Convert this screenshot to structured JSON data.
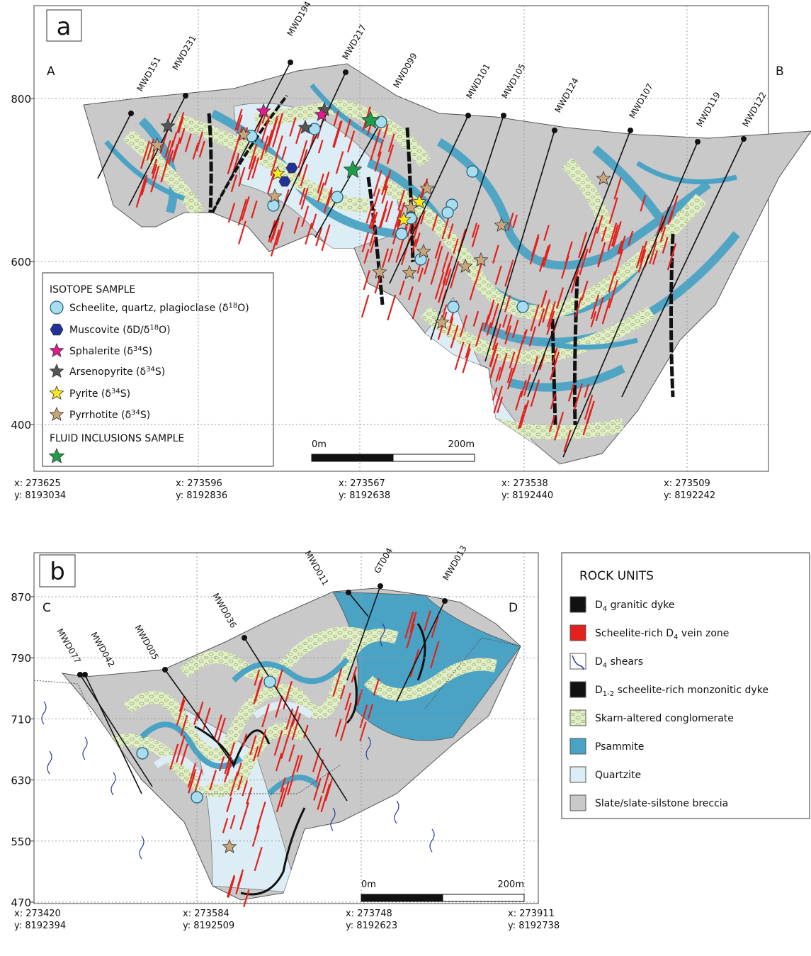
{
  "panel_a": {
    "label": "a",
    "section_ends": [
      "A",
      "B"
    ],
    "elevation_ticks": [
      800,
      600,
      400
    ],
    "drill_holes": [
      "MWD151",
      "MWD231",
      "MWD194",
      "MWD217",
      "MWD099",
      "MWD101",
      "MWD105",
      "MWD124",
      "MWD107",
      "MWD119",
      "MWD122"
    ],
    "coordinates": [
      {
        "x": "x: 273625",
        "y": "y: 8193034"
      },
      {
        "x": "x: 273596",
        "y": "y: 8192836"
      },
      {
        "x": "x: 273567",
        "y": "y: 8192638"
      },
      {
        "x": "x: 273538",
        "y": "y: 8192440"
      },
      {
        "x": "x: 273509",
        "y": "y: 8192242"
      }
    ],
    "scale_bar": {
      "start": "0m",
      "end": "200m"
    },
    "legend": {
      "title": "ISOTOPE SAMPLE",
      "items": [
        {
          "pre": "Scheelite, quartz,  plagioclase (δ",
          "sup": "18",
          "post": "O)"
        },
        {
          "pre": "Muscovite (δD/δ",
          "sup": "18",
          "post": "O)"
        },
        {
          "pre": "Sphalerite (δ",
          "sup": "34",
          "post": "S)"
        },
        {
          "pre": "Arsenopyrite (δ",
          "sup": "34",
          "post": "S)"
        },
        {
          "pre": "Pyrite (δ",
          "sup": "34",
          "post": "S)"
        },
        {
          "pre": "Pyrrhotite (δ",
          "sup": "34",
          "post": "S)"
        }
      ],
      "fluid_title": "FLUID INCLUSIONS SAMPLE"
    }
  },
  "panel_b": {
    "label": "b",
    "section_ends": [
      "C",
      "D"
    ],
    "elevation_ticks": [
      870,
      790,
      710,
      630,
      550,
      470
    ],
    "drill_holes": [
      "MWD077",
      "MWD042",
      "MWD005",
      "MWD036",
      "MWD011",
      "GT004",
      "MWD013"
    ],
    "coordinates": [
      {
        "x": "x: 273420",
        "y": "y: 8192394"
      },
      {
        "x": "x: 273584",
        "y": "y: 8192509"
      },
      {
        "x": "x: 273748",
        "y": "y: 8192623"
      },
      {
        "x": "x: 273911",
        "y": "y: 8192738"
      }
    ],
    "scale_bar": {
      "start": "0m",
      "end": "200m"
    },
    "legend": {
      "title": "ROCK UNITS",
      "items": [
        {
          "pre": "D",
          "sub": "4",
          "post": " granitic dyke"
        },
        {
          "pre": "Scheelite-rich D",
          "sub": "4",
          "post": " vein zone"
        },
        {
          "pre": "D",
          "sub": "4",
          "post": " shears"
        },
        {
          "pre": "D",
          "sub": "1-2",
          "post": " scheelite-rich monzonitic dyke"
        },
        {
          "pre": "Skarn-altered conglomerate"
        },
        {
          "pre": "Psammite"
        },
        {
          "pre": "Quartzite"
        },
        {
          "pre": "Slate/slate-silstone breccia"
        }
      ]
    }
  }
}
